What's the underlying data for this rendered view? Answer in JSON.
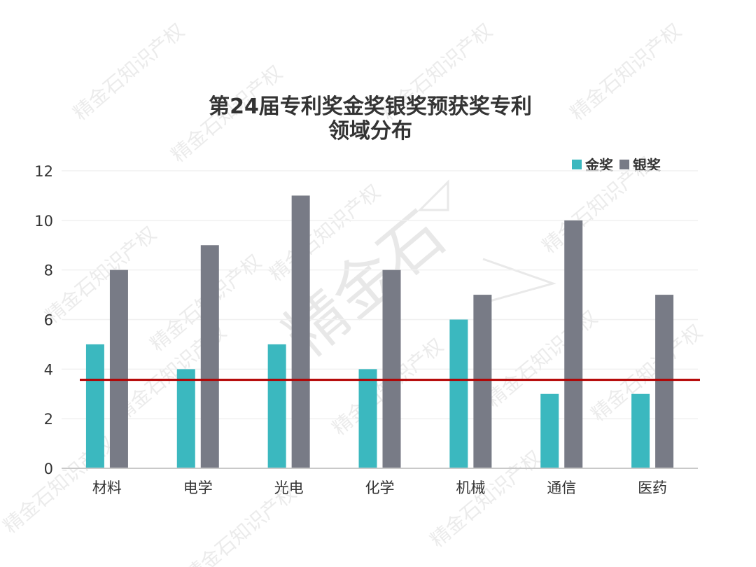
{
  "colors": {
    "gold": "#3bb8bf",
    "silver": "#787b86",
    "reference_line": "#b30000",
    "axis": "#c9c9c9",
    "grid": "#f0f0f0"
  },
  "watermark": {
    "text": "精金石知识产权",
    "logo_text": "精金石"
  },
  "chart_data": {
    "type": "bar",
    "title": "第24届专利奖金奖银奖预获奖专利领域分布",
    "title_lines": [
      "第24届专利奖金奖银奖预获奖专利",
      "领域分布"
    ],
    "categories": [
      "材料",
      "电学",
      "光电",
      "化学",
      "机械",
      "通信",
      "医药"
    ],
    "series": [
      {
        "name": "金奖",
        "values": [
          5,
          4,
          5,
          4,
          6,
          3,
          3
        ]
      },
      {
        "name": "银奖",
        "values": [
          8,
          9,
          11,
          8,
          7,
          10,
          7
        ]
      }
    ],
    "y_ticks": [
      "0",
      "2",
      "4",
      "6",
      "8",
      "10",
      "12"
    ],
    "ylim": [
      0,
      12
    ],
    "reference_line": 3.57,
    "grid": true,
    "legend_position": "top-right"
  }
}
